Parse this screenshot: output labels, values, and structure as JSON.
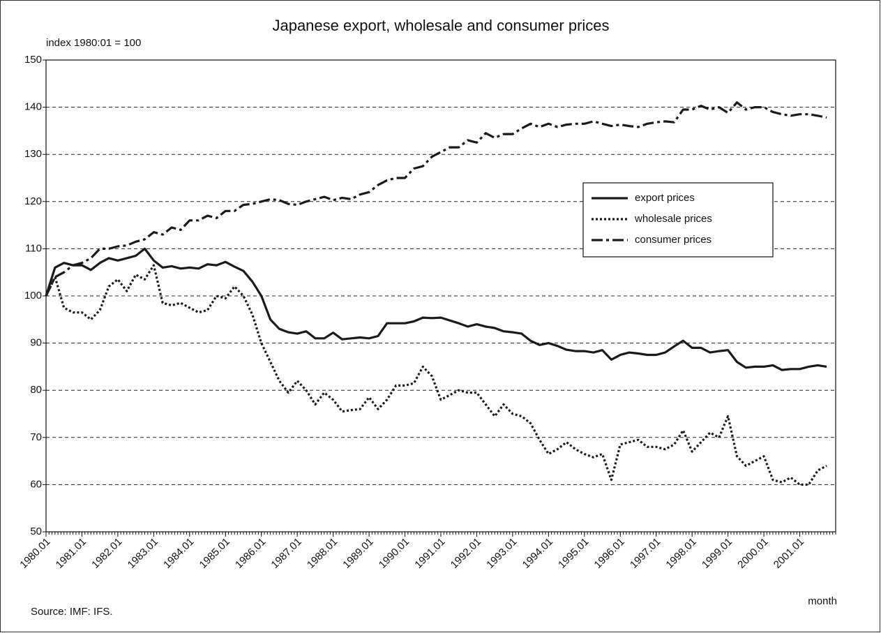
{
  "chart_data": {
    "type": "line",
    "title": "Japanese export, wholesale and consumer prices",
    "y_label": "index 1980:01 = 100",
    "x_label": "month",
    "source": "Source: IMF: IFS.",
    "xlim": [
      1980,
      2002
    ],
    "ylim": [
      50,
      150
    ],
    "yticks": [
      50,
      60,
      70,
      80,
      90,
      100,
      110,
      120,
      130,
      140,
      150
    ],
    "grid": true,
    "legend": "center right",
    "xticks": [
      {
        "value": 1980,
        "label": "1980.01"
      },
      {
        "value": 1981,
        "label": "1981.01"
      },
      {
        "value": 1982,
        "label": "1982.01"
      },
      {
        "value": 1983,
        "label": "1983.01"
      },
      {
        "value": 1984,
        "label": "1984.01"
      },
      {
        "value": 1985,
        "label": "1985.01"
      },
      {
        "value": 1986,
        "label": "1986.01"
      },
      {
        "value": 1987,
        "label": "1987.01"
      },
      {
        "value": 1988,
        "label": "1988.01"
      },
      {
        "value": 1989,
        "label": "1989.01"
      },
      {
        "value": 1990,
        "label": "1990.01"
      },
      {
        "value": 1991,
        "label": "1991.01"
      },
      {
        "value": 1992,
        "label": "1992.01"
      },
      {
        "value": 1993,
        "label": "1993.01"
      },
      {
        "value": 1994,
        "label": "1994.01"
      },
      {
        "value": 1995,
        "label": "1995.01"
      },
      {
        "value": 1996,
        "label": "1996.01"
      },
      {
        "value": 1997,
        "label": "1997.01"
      },
      {
        "value": 1998,
        "label": "1998.01"
      },
      {
        "value": 1999,
        "label": "1999.01"
      },
      {
        "value": 2000,
        "label": "2000.01"
      },
      {
        "value": 2001,
        "label": "2001.01"
      }
    ],
    "x": [
      1980,
      1980.25,
      1980.5,
      1980.75,
      1981,
      1981.25,
      1981.5,
      1981.75,
      1982,
      1982.25,
      1982.5,
      1982.75,
      1983,
      1983.25,
      1983.5,
      1983.75,
      1984,
      1984.25,
      1984.5,
      1984.75,
      1985,
      1985.25,
      1985.5,
      1985.75,
      1986,
      1986.25,
      1986.5,
      1986.75,
      1987,
      1987.25,
      1987.5,
      1987.75,
      1988,
      1988.25,
      1988.5,
      1988.75,
      1989,
      1989.25,
      1989.5,
      1989.75,
      1990,
      1990.25,
      1990.5,
      1990.75,
      1991,
      1991.25,
      1991.5,
      1991.75,
      1992,
      1992.25,
      1992.5,
      1992.75,
      1993,
      1993.25,
      1993.5,
      1993.75,
      1994,
      1994.25,
      1994.5,
      1994.75,
      1995,
      1995.25,
      1995.5,
      1995.75,
      1996,
      1996.25,
      1996.5,
      1996.75,
      1997,
      1997.25,
      1997.5,
      1997.75,
      1998,
      1998.25,
      1998.5,
      1998.75,
      1999,
      1999.25,
      1999.5,
      1999.75,
      2000,
      2000.25,
      2000.5,
      2000.75,
      2001,
      2001.25,
      2001.5,
      2001.75
    ],
    "series": [
      {
        "name": "export prices",
        "color": "#1a1a1a",
        "style": "solid",
        "values": [
          100,
          106,
          107,
          106.5,
          106.5,
          105.5,
          107,
          108,
          107.5,
          108,
          108.5,
          110,
          107.5,
          106,
          106.3,
          105.8,
          106,
          105.8,
          106.7,
          106.5,
          107.2,
          106.2,
          105.3,
          103,
          100,
          95,
          93,
          92.3,
          92,
          92.5,
          91,
          91,
          92.2,
          90.8,
          91,
          91.2,
          91,
          91.5,
          94.2,
          94.2,
          94.2,
          94.6,
          95.4,
          95.3,
          95.4,
          94.8,
          94.2,
          93.5,
          94,
          93.5,
          93.2,
          92.5,
          92.3,
          92,
          90.5,
          89.6,
          90,
          89.4,
          88.6,
          88.3,
          88.3,
          88,
          88.5,
          86.5,
          87.5,
          88,
          87.8,
          87.5,
          87.5,
          88,
          89.3,
          90.5,
          89,
          89,
          88,
          88.3,
          88.5,
          86,
          84.8,
          85,
          85,
          85.3,
          84.3,
          84.5,
          84.5,
          85,
          85.3,
          85
        ]
      },
      {
        "name": "wholesale prices",
        "color": "#1a1a1a",
        "style": "dotted",
        "values": [
          100,
          104,
          97.5,
          96.5,
          96.5,
          95,
          97,
          102,
          103.5,
          101,
          104.5,
          103.5,
          106.5,
          98.5,
          98,
          98.5,
          97.5,
          96.5,
          97,
          100,
          99.5,
          102,
          100,
          96,
          90,
          86,
          82,
          79.5,
          82,
          80,
          77,
          79.5,
          78,
          75.5,
          75.8,
          76,
          78.5,
          76,
          78,
          81,
          81,
          81.5,
          85,
          83,
          78,
          79,
          80,
          79.5,
          79.5,
          77,
          74.5,
          77,
          75,
          74.5,
          73,
          69.5,
          66.5,
          67.5,
          69,
          67.5,
          66.5,
          65.8,
          66.5,
          61,
          68.5,
          69,
          69.5,
          68,
          68,
          67.5,
          68.5,
          71.5,
          67,
          69,
          71,
          70,
          74.5,
          66,
          64,
          65,
          66,
          61,
          60.5,
          61.5,
          60,
          60,
          63,
          64
        ]
      },
      {
        "name": "consumer prices",
        "color": "#1a1a1a",
        "style": "dashdot",
        "values": [
          100,
          104,
          105,
          106.5,
          107,
          108,
          110,
          110,
          110.5,
          110.7,
          111.5,
          112,
          113.5,
          113,
          114.5,
          114,
          116,
          116,
          117,
          116.5,
          118,
          118,
          119.3,
          119.5,
          120,
          120.5,
          120.3,
          119.5,
          119.3,
          120,
          120.5,
          121,
          120.3,
          120.8,
          120.5,
          121.5,
          122,
          123.5,
          124.5,
          125,
          125,
          127,
          127.5,
          129.5,
          130.5,
          131.5,
          131.5,
          133,
          132.5,
          134.5,
          133.5,
          134.3,
          134.3,
          135.5,
          136.5,
          135.8,
          136.5,
          135.8,
          136.3,
          136.5,
          136.5,
          137,
          136.5,
          136,
          136.3,
          136,
          135.8,
          136.5,
          136.8,
          137,
          136.8,
          139.5,
          139.5,
          140.3,
          139.5,
          140,
          138.8,
          141,
          139.5,
          140,
          140,
          139,
          138.5,
          138.2,
          138.5,
          138.5,
          138.2,
          137.8
        ]
      }
    ]
  }
}
